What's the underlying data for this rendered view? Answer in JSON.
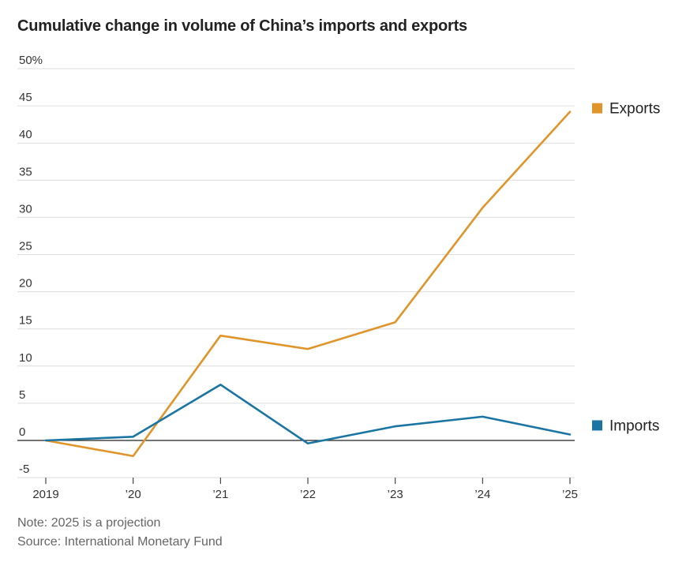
{
  "chart_data": {
    "type": "line",
    "title": "Cumulative change in volume of China’s imports and exports",
    "xlabel": "",
    "ylabel": "",
    "categories": [
      "2019",
      "’20",
      "’21",
      "’22",
      "’23",
      "’24",
      "’25"
    ],
    "y_ticks": [
      -5,
      0,
      5,
      10,
      15,
      20,
      25,
      30,
      35,
      40,
      45,
      50
    ],
    "y_tick_labels": [
      "-5",
      "0",
      "5",
      "10",
      "15",
      "20",
      "25",
      "30",
      "35",
      "40",
      "45",
      "50%"
    ],
    "ylim": [
      -5,
      50
    ],
    "grid": true,
    "legend_position": "right, at line ends",
    "series": [
      {
        "name": "Exports",
        "color": "#e0952b",
        "values": [
          0,
          -2.1,
          14.1,
          12.3,
          15.9,
          31.3,
          44.2
        ]
      },
      {
        "name": "Imports",
        "color": "#1a75a3",
        "values": [
          0,
          0.5,
          7.5,
          -0.4,
          1.9,
          3.2,
          0.8
        ]
      }
    ]
  },
  "notes": {
    "note": "Note: 2025 is a projection",
    "source": "Source: International Monetary Fund"
  }
}
